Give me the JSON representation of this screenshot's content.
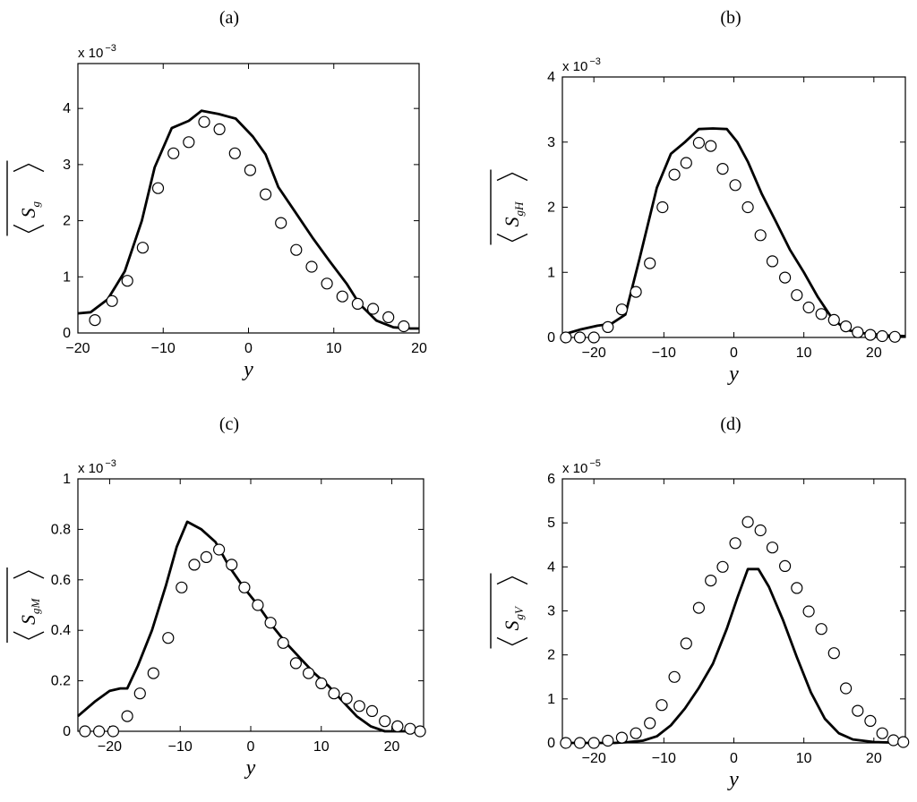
{
  "chart_data": [
    {
      "type": "line",
      "panel_label": "(a)",
      "xlabel": "y",
      "ylabel_main": "S",
      "ylabel_sub": "g",
      "scale_prefix": "x 10",
      "scale_exponent": "−3",
      "xlim": [
        -20,
        20
      ],
      "ylim": [
        0,
        4.8
      ],
      "xticks": [
        -20,
        -10,
        0,
        10,
        20
      ],
      "yticks": [
        0,
        1,
        2,
        3,
        4
      ],
      "tick_labels_x": [
        "−20",
        "−10",
        "0",
        "10",
        "20"
      ],
      "tick_labels_y": [
        "0",
        "1",
        "2",
        "3",
        "4"
      ],
      "series": [
        {
          "style": "solid-line",
          "x": [
            -20,
            -18.5,
            -16.5,
            -14.5,
            -12.5,
            -11,
            -9,
            -7,
            -5.5,
            -3.5,
            -1.5,
            0.5,
            2,
            3.5,
            5.5,
            7.5,
            9.5,
            11.5,
            13,
            15,
            17,
            19,
            20
          ],
          "y": [
            0.35,
            0.37,
            0.6,
            1.1,
            2.0,
            2.95,
            3.65,
            3.78,
            3.96,
            3.9,
            3.82,
            3.5,
            3.18,
            2.6,
            2.15,
            1.7,
            1.28,
            0.88,
            0.52,
            0.22,
            0.1,
            0.08,
            0.08
          ]
        },
        {
          "style": "open-circle",
          "x": [
            -18,
            -16,
            -14.2,
            -12.4,
            -10.6,
            -8.8,
            -7,
            -5.2,
            -3.4,
            -1.6,
            0.2,
            2,
            3.8,
            5.6,
            7.4,
            9.2,
            11,
            12.8,
            14.6,
            16.4,
            18.2
          ],
          "y": [
            0.23,
            0.57,
            0.93,
            1.52,
            2.58,
            3.2,
            3.4,
            3.76,
            3.63,
            3.2,
            2.9,
            2.47,
            1.96,
            1.48,
            1.18,
            0.88,
            0.65,
            0.52,
            0.43,
            0.28,
            0.12
          ]
        }
      ]
    },
    {
      "type": "line",
      "panel_label": "(b)",
      "xlabel": "y",
      "ylabel_main": "S",
      "ylabel_sub": "gH",
      "scale_prefix": "x 10",
      "scale_exponent": "−3",
      "xlim": [
        -24.5,
        24.5
      ],
      "ylim": [
        0,
        4
      ],
      "xticks": [
        -20,
        -10,
        0,
        10,
        20
      ],
      "yticks": [
        0,
        1,
        2,
        3,
        4
      ],
      "tick_labels_x": [
        "−20",
        "−10",
        "0",
        "10",
        "20"
      ],
      "tick_labels_y": [
        "0",
        "1",
        "2",
        "3",
        "4"
      ],
      "series": [
        {
          "style": "solid-line",
          "x": [
            -24.5,
            -22,
            -19.5,
            -17.5,
            -15.5,
            -13.5,
            -11,
            -9,
            -7,
            -5,
            -3,
            -1,
            0.5,
            2,
            4,
            6,
            8,
            10,
            12,
            14,
            16,
            18,
            20,
            22,
            24.5
          ],
          "y": [
            0.04,
            0.12,
            0.18,
            0.21,
            0.35,
            1.2,
            2.3,
            2.82,
            3.0,
            3.2,
            3.21,
            3.2,
            3.0,
            2.7,
            2.2,
            1.78,
            1.35,
            1.0,
            0.62,
            0.3,
            0.12,
            0.07,
            0.05,
            0.03,
            0.02
          ]
        },
        {
          "style": "open-circle",
          "x": [
            -24,
            -22,
            -20,
            -18,
            -16,
            -14,
            -12,
            -10.2,
            -8.5,
            -6.8,
            -5,
            -3.3,
            -1.6,
            0.2,
            2,
            3.8,
            5.5,
            7.3,
            9,
            10.7,
            12.5,
            14.3,
            16,
            17.7,
            19.5,
            21.2,
            23
          ],
          "y": [
            0.0,
            0.0,
            0.0,
            0.16,
            0.43,
            0.7,
            1.14,
            2.0,
            2.5,
            2.68,
            2.99,
            2.94,
            2.59,
            2.34,
            2.0,
            1.57,
            1.17,
            0.92,
            0.65,
            0.46,
            0.36,
            0.27,
            0.17,
            0.08,
            0.04,
            0.02,
            0.01
          ]
        }
      ]
    },
    {
      "type": "line",
      "panel_label": "(c)",
      "xlabel": "y",
      "ylabel_main": "S",
      "ylabel_sub": "gM",
      "scale_prefix": "x 10",
      "scale_exponent": "−3",
      "xlim": [
        -24.5,
        24.5
      ],
      "ylim": [
        0,
        1
      ],
      "xticks": [
        -20,
        -10,
        0,
        10,
        20
      ],
      "yticks": [
        0,
        0.2,
        0.4,
        0.6,
        0.8,
        1
      ],
      "tick_labels_x": [
        "−20",
        "−10",
        "0",
        "10",
        "20"
      ],
      "tick_labels_y": [
        "0",
        "0.2",
        "0.4",
        "0.6",
        "0.8",
        "1"
      ],
      "series": [
        {
          "style": "solid-line",
          "x": [
            -24.5,
            -22,
            -20,
            -18.5,
            -17.5,
            -16,
            -14,
            -12,
            -10.5,
            -9,
            -7,
            -5,
            -3,
            -1,
            1,
            3,
            5,
            7,
            9,
            11,
            13,
            15,
            17,
            19,
            21,
            24.5
          ],
          "y": [
            0.06,
            0.12,
            0.16,
            0.17,
            0.17,
            0.26,
            0.4,
            0.58,
            0.73,
            0.83,
            0.8,
            0.75,
            0.65,
            0.57,
            0.5,
            0.42,
            0.35,
            0.29,
            0.23,
            0.18,
            0.12,
            0.06,
            0.02,
            0.0,
            0.0,
            0.0
          ]
        },
        {
          "style": "open-circle",
          "x": [
            -23.5,
            -21.5,
            -19.5,
            -17.5,
            -15.7,
            -13.8,
            -11.7,
            -9.8,
            -8,
            -6.3,
            -4.5,
            -2.7,
            -0.9,
            1,
            2.8,
            4.6,
            6.4,
            8.2,
            10,
            11.8,
            13.6,
            15.4,
            17.2,
            19,
            20.8,
            22.6,
            24
          ],
          "y": [
            0.0,
            0.0,
            0.0,
            0.06,
            0.15,
            0.23,
            0.37,
            0.57,
            0.66,
            0.69,
            0.72,
            0.66,
            0.57,
            0.5,
            0.43,
            0.35,
            0.27,
            0.23,
            0.19,
            0.15,
            0.13,
            0.1,
            0.08,
            0.04,
            0.02,
            0.01,
            0.0
          ]
        }
      ]
    },
    {
      "type": "line",
      "panel_label": "(d)",
      "xlabel": "y",
      "ylabel_main": "S",
      "ylabel_sub": "gV",
      "scale_prefix": "x 10",
      "scale_exponent": "−5",
      "xlim": [
        -24.5,
        24.5
      ],
      "ylim": [
        0,
        6
      ],
      "xticks": [
        -20,
        -10,
        0,
        10,
        20
      ],
      "yticks": [
        0,
        1,
        2,
        3,
        4,
        5,
        6
      ],
      "tick_labels_x": [
        "−20",
        "−10",
        "0",
        "10",
        "20"
      ],
      "tick_labels_y": [
        "0",
        "1",
        "2",
        "3",
        "4",
        "5",
        "6"
      ],
      "series": [
        {
          "style": "solid-line",
          "x": [
            -24.5,
            -20,
            -17,
            -15,
            -13,
            -11,
            -9,
            -7,
            -5,
            -3,
            -1,
            0.5,
            2,
            3.5,
            5,
            7,
            9,
            11,
            13,
            15,
            17,
            20,
            24.5
          ],
          "y": [
            0.0,
            0.0,
            0.0,
            0.02,
            0.05,
            0.15,
            0.4,
            0.78,
            1.25,
            1.8,
            2.6,
            3.3,
            3.95,
            3.95,
            3.55,
            2.8,
            1.95,
            1.15,
            0.55,
            0.22,
            0.08,
            0.02,
            0.0
          ]
        },
        {
          "style": "open-circle",
          "x": [
            -24,
            -22,
            -20,
            -18,
            -16,
            -14,
            -12,
            -10.3,
            -8.5,
            -6.8,
            -5,
            -3.3,
            -1.6,
            0.2,
            2,
            3.8,
            5.5,
            7.3,
            9,
            10.7,
            12.5,
            14.3,
            16,
            17.7,
            19.5,
            21.2,
            22.8,
            24.2
          ],
          "y": [
            0.0,
            0.0,
            0.0,
            0.05,
            0.12,
            0.22,
            0.45,
            0.86,
            1.5,
            2.26,
            3.07,
            3.69,
            4.0,
            4.54,
            5.02,
            4.83,
            4.44,
            4.02,
            3.52,
            2.99,
            2.59,
            2.04,
            1.24,
            0.73,
            0.5,
            0.22,
            0.06,
            0.02
          ]
        }
      ]
    }
  ]
}
